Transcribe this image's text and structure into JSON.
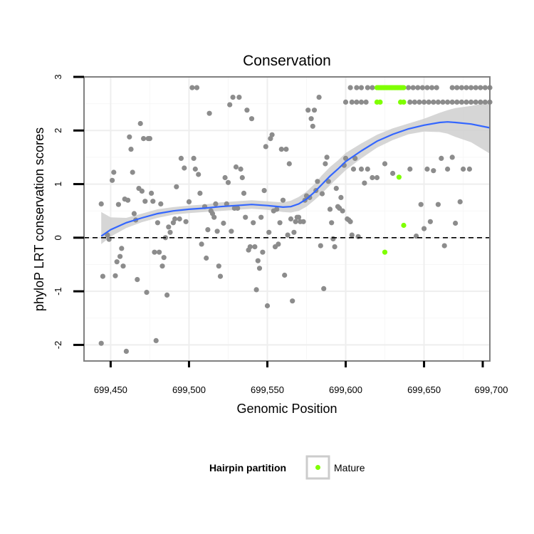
{
  "chart_data": {
    "type": "scatter",
    "title": "Conservation",
    "xlabel": "Genomic Position",
    "ylabel": "phyloP LRT conservation scores",
    "xlim": [
      699433,
      699692
    ],
    "ylim": [
      -2.3,
      3.0
    ],
    "x_ticks": [
      699450,
      699500,
      699550,
      699600,
      699650,
      699700
    ],
    "x_tick_labels": [
      "699,450",
      "699,500",
      "699,550",
      "699,600",
      "699,650",
      "699,700"
    ],
    "y_ticks": [
      -2,
      -1,
      0,
      1,
      2,
      3
    ],
    "y_tick_labels": [
      "-2",
      "-1",
      "0",
      "1",
      "2",
      "3"
    ],
    "grid": true,
    "reference_line": {
      "y": 0,
      "style": "dashed"
    },
    "legend": {
      "title": "Hairpin partition",
      "placement": "bottom",
      "entries": [
        {
          "name": "Mature",
          "color": "#7fff00"
        }
      ]
    },
    "colors": {
      "default_points": "#8c8c8c",
      "mature_points": "#7fff00",
      "smooth_line": "#3366ff",
      "confidence_band": "#cfcfcf",
      "panel_border": "#808080"
    },
    "series": [
      {
        "name": "",
        "color": "#8c8c8c",
        "points": [
          [
            699444,
            0.63
          ],
          [
            699445,
            -0.72
          ],
          [
            699444,
            -1.97
          ],
          [
            699448,
            0.05
          ],
          [
            699449,
            -0.03
          ],
          [
            699451,
            1.07
          ],
          [
            699452,
            1.22
          ],
          [
            699453,
            -0.71
          ],
          [
            699454,
            -0.45
          ],
          [
            699455,
            0.62
          ],
          [
            699456,
            -0.35
          ],
          [
            699457,
            -0.2
          ],
          [
            699458,
            -0.53
          ],
          [
            699459,
            0.72
          ],
          [
            699460,
            -2.12
          ],
          [
            699461,
            0.7
          ],
          [
            699462,
            1.88
          ],
          [
            699463,
            1.65
          ],
          [
            699464,
            1.22
          ],
          [
            699465,
            0.45
          ],
          [
            699466,
            0.33
          ],
          [
            699467,
            -0.78
          ],
          [
            699468,
            0.92
          ],
          [
            699469,
            2.13
          ],
          [
            699470,
            0.87
          ],
          [
            699471,
            1.85
          ],
          [
            699472,
            0.68
          ],
          [
            699473,
            -1.02
          ],
          [
            699474,
            1.85
          ],
          [
            699475,
            1.85
          ],
          [
            699476,
            0.83
          ],
          [
            699477,
            0.68
          ],
          [
            699478,
            -0.27
          ],
          [
            699479,
            -1.92
          ],
          [
            699480,
            0.28
          ],
          [
            699481,
            -0.27
          ],
          [
            699482,
            0.63
          ],
          [
            699483,
            -0.53
          ],
          [
            699484,
            -0.37
          ],
          [
            699485,
            0.0
          ],
          [
            699486,
            -1.07
          ],
          [
            699487,
            0.2
          ],
          [
            699488,
            0.1
          ],
          [
            699490,
            0.28
          ],
          [
            699491,
            0.35
          ],
          [
            699492,
            0.95
          ],
          [
            699494,
            0.35
          ],
          [
            699495,
            1.48
          ],
          [
            699497,
            1.3
          ],
          [
            699498,
            0.3
          ],
          [
            699500,
            0.67
          ],
          [
            699502,
            2.8
          ],
          [
            699503,
            1.48
          ],
          [
            699504,
            1.28
          ],
          [
            699505,
            2.8
          ],
          [
            699506,
            1.18
          ],
          [
            699507,
            0.83
          ],
          [
            699508,
            -0.12
          ],
          [
            699510,
            0.58
          ],
          [
            699511,
            -0.38
          ],
          [
            699512,
            0.15
          ],
          [
            699513,
            2.32
          ],
          [
            699514,
            0.5
          ],
          [
            699515,
            0.45
          ],
          [
            699516,
            0.38
          ],
          [
            699517,
            0.63
          ],
          [
            699518,
            0.12
          ],
          [
            699519,
            -0.53
          ],
          [
            699520,
            -0.72
          ],
          [
            699522,
            0.27
          ],
          [
            699523,
            1.12
          ],
          [
            699524,
            0.63
          ],
          [
            699525,
            1.03
          ],
          [
            699526,
            2.48
          ],
          [
            699527,
            0.12
          ],
          [
            699528,
            2.62
          ],
          [
            699529,
            0.55
          ],
          [
            699530,
            1.32
          ],
          [
            699531,
            0.55
          ],
          [
            699532,
            2.62
          ],
          [
            699533,
            1.28
          ],
          [
            699534,
            1.12
          ],
          [
            699535,
            0.83
          ],
          [
            699536,
            0.38
          ],
          [
            699537,
            2.38
          ],
          [
            699538,
            -0.23
          ],
          [
            699539,
            -0.17
          ],
          [
            699540,
            2.22
          ],
          [
            699541,
            0.28
          ],
          [
            699542,
            -0.17
          ],
          [
            699543,
            -0.97
          ],
          [
            699544,
            -0.43
          ],
          [
            699545,
            -0.57
          ],
          [
            699546,
            0.38
          ],
          [
            699547,
            -0.27
          ],
          [
            699548,
            0.88
          ],
          [
            699549,
            1.7
          ],
          [
            699550,
            -1.27
          ],
          [
            699551,
            0.1
          ],
          [
            699552,
            1.85
          ],
          [
            699553,
            1.92
          ],
          [
            699554,
            0.5
          ],
          [
            699555,
            -0.17
          ],
          [
            699556,
            0.53
          ],
          [
            699557,
            -0.12
          ],
          [
            699558,
            0.28
          ],
          [
            699559,
            1.65
          ],
          [
            699560,
            0.7
          ],
          [
            699561,
            -0.7
          ],
          [
            699562,
            1.65
          ],
          [
            699563,
            0.05
          ],
          [
            699564,
            1.38
          ],
          [
            699565,
            0.35
          ],
          [
            699566,
            -1.18
          ],
          [
            699567,
            0.1
          ],
          [
            699568,
            0.3
          ],
          [
            699569,
            0.38
          ],
          [
            699570,
            0.38
          ],
          [
            699571,
            0.3
          ],
          [
            699573,
            0.3
          ],
          [
            699574,
            0.7
          ],
          [
            699575,
            0.78
          ],
          [
            699576,
            2.38
          ],
          [
            699577,
            0.75
          ],
          [
            699578,
            2.22
          ],
          [
            699579,
            2.08
          ],
          [
            699580,
            2.38
          ],
          [
            699581,
            0.88
          ],
          [
            699582,
            1.05
          ],
          [
            699583,
            2.62
          ],
          [
            699584,
            -0.15
          ],
          [
            699585,
            0.82
          ],
          [
            699586,
            -0.95
          ],
          [
            699587,
            1.38
          ],
          [
            699588,
            1.5
          ],
          [
            699589,
            1.05
          ],
          [
            699590,
            0.53
          ],
          [
            699591,
            0.28
          ],
          [
            699592,
            -0.02
          ],
          [
            699593,
            -0.17
          ],
          [
            699594,
            0.92
          ],
          [
            699595,
            0.58
          ],
          [
            699596,
            0.55
          ],
          [
            699597,
            0.75
          ],
          [
            699598,
            0.5
          ],
          [
            699599,
            1.35
          ],
          [
            699600,
            1.48
          ],
          [
            699601,
            0.35
          ],
          [
            699602,
            0.33
          ],
          [
            699603,
            0.3
          ],
          [
            699604,
            0.05
          ],
          [
            699605,
            1.28
          ],
          [
            699606,
            1.48
          ],
          [
            699608,
            0.02
          ],
          [
            699610,
            1.28
          ],
          [
            699612,
            1.02
          ],
          [
            699614,
            1.28
          ],
          [
            699617,
            1.12
          ],
          [
            699620,
            1.12
          ],
          [
            699625,
            1.38
          ],
          [
            699630,
            1.2
          ],
          [
            699641,
            1.28
          ],
          [
            699645,
            0.03
          ],
          [
            699648,
            0.62
          ],
          [
            699650,
            0.17
          ],
          [
            699652,
            1.28
          ],
          [
            699654,
            0.3
          ],
          [
            699656,
            1.25
          ],
          [
            699659,
            0.62
          ],
          [
            699661,
            1.48
          ],
          [
            699663,
            -0.15
          ],
          [
            699665,
            1.28
          ],
          [
            699668,
            1.5
          ],
          [
            699670,
            0.27
          ],
          [
            699673,
            0.67
          ],
          [
            699675,
            1.28
          ],
          [
            699679,
            1.28
          ],
          [
            699603,
            2.8
          ],
          [
            699607,
            2.8
          ],
          [
            699610,
            2.8
          ],
          [
            699614,
            2.8
          ],
          [
            699617,
            2.8
          ],
          [
            699640,
            2.8
          ],
          [
            699643,
            2.8
          ],
          [
            699646,
            2.8
          ],
          [
            699649,
            2.8
          ],
          [
            699652,
            2.8
          ],
          [
            699655,
            2.8
          ],
          [
            699658,
            2.8
          ],
          [
            699668,
            2.8
          ],
          [
            699671,
            2.8
          ],
          [
            699674,
            2.8
          ],
          [
            699677,
            2.8
          ],
          [
            699680,
            2.8
          ],
          [
            699683,
            2.8
          ],
          [
            699686,
            2.8
          ],
          [
            699689,
            2.8
          ],
          [
            699692,
            2.8
          ],
          [
            699600,
            2.53
          ],
          [
            699604,
            2.53
          ],
          [
            699607,
            2.53
          ],
          [
            699610,
            2.53
          ],
          [
            699613,
            2.53
          ],
          [
            699641,
            2.53
          ],
          [
            699644,
            2.53
          ],
          [
            699647,
            2.53
          ],
          [
            699650,
            2.53
          ],
          [
            699653,
            2.53
          ],
          [
            699656,
            2.53
          ],
          [
            699659,
            2.53
          ],
          [
            699662,
            2.53
          ],
          [
            699665,
            2.53
          ],
          [
            699668,
            2.53
          ],
          [
            699671,
            2.53
          ],
          [
            699674,
            2.53
          ],
          [
            699677,
            2.53
          ],
          [
            699680,
            2.53
          ],
          [
            699683,
            2.53
          ],
          [
            699686,
            2.53
          ],
          [
            699689,
            2.53
          ],
          [
            699692,
            2.53
          ]
        ]
      },
      {
        "name": "Mature",
        "color": "#7fff00",
        "points": [
          [
            699620,
            2.8
          ],
          [
            699621,
            2.8
          ],
          [
            699622,
            2.8
          ],
          [
            699623,
            2.8
          ],
          [
            699624,
            2.8
          ],
          [
            699625,
            2.8
          ],
          [
            699626,
            2.8
          ],
          [
            699627,
            2.8
          ],
          [
            699628,
            2.8
          ],
          [
            699629,
            2.8
          ],
          [
            699630,
            2.8
          ],
          [
            699631,
            2.8
          ],
          [
            699632,
            2.8
          ],
          [
            699633,
            2.8
          ],
          [
            699634,
            2.8
          ],
          [
            699635,
            2.8
          ],
          [
            699636,
            2.8
          ],
          [
            699637,
            2.8
          ],
          [
            699620,
            2.53
          ],
          [
            699622,
            2.53
          ],
          [
            699635,
            2.53
          ],
          [
            699637,
            2.53
          ],
          [
            699625,
            -0.27
          ],
          [
            699634,
            1.13
          ],
          [
            699637,
            0.23
          ]
        ]
      }
    ],
    "smooth_line": {
      "x": [
        699444,
        699450,
        699460,
        699470,
        699480,
        699490,
        699500,
        699510,
        699520,
        699530,
        699540,
        699550,
        699560,
        699565,
        699570,
        699575,
        699580,
        699585,
        699590,
        699595,
        699600,
        699610,
        699620,
        699630,
        699640,
        699650,
        699660,
        699665,
        699670,
        699680,
        699692
      ],
      "y": [
        0.03,
        0.15,
        0.28,
        0.37,
        0.45,
        0.5,
        0.53,
        0.55,
        0.58,
        0.6,
        0.62,
        0.6,
        0.57,
        0.58,
        0.63,
        0.72,
        0.85,
        1.0,
        1.15,
        1.28,
        1.42,
        1.62,
        1.8,
        1.93,
        2.03,
        2.1,
        2.15,
        2.16,
        2.15,
        2.12,
        2.05
      ],
      "lower": [
        -0.12,
        0.02,
        0.18,
        0.29,
        0.37,
        0.43,
        0.46,
        0.48,
        0.5,
        0.52,
        0.54,
        0.52,
        0.48,
        0.47,
        0.5,
        0.58,
        0.7,
        0.83,
        0.98,
        1.12,
        1.26,
        1.48,
        1.68,
        1.82,
        1.93,
        1.98,
        1.97,
        1.94,
        1.88,
        1.78,
        1.57
      ],
      "upper": [
        0.48,
        0.38,
        0.37,
        0.45,
        0.53,
        0.57,
        0.6,
        0.62,
        0.66,
        0.68,
        0.7,
        0.68,
        0.66,
        0.69,
        0.76,
        0.86,
        1.0,
        1.17,
        1.32,
        1.44,
        1.58,
        1.76,
        1.92,
        2.04,
        2.13,
        2.22,
        2.33,
        2.38,
        2.42,
        2.46,
        2.53
      ]
    }
  }
}
